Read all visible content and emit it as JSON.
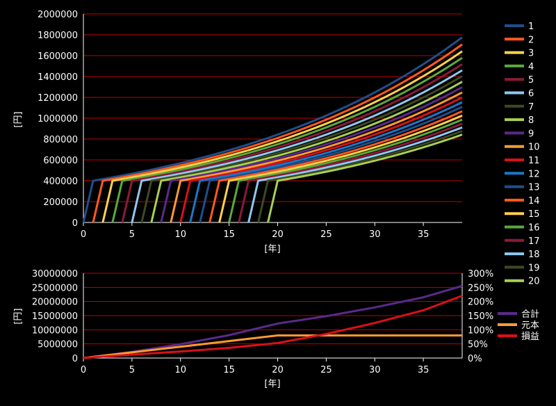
{
  "chart_data": [
    {
      "type": "line",
      "title": "",
      "xlabel": "[年]",
      "ylabel": "[円]",
      "xlim": [
        0,
        39
      ],
      "xticks": [
        0,
        5,
        10,
        15,
        20,
        25,
        30,
        35
      ],
      "ylim": [
        0,
        2000000
      ],
      "yticks": [
        0,
        200000,
        400000,
        600000,
        800000,
        1000000,
        1200000,
        1400000,
        1600000,
        1800000,
        2000000
      ],
      "grid": true,
      "legend_position": "right",
      "series_model": {
        "start_year": "series index minus 1",
        "value_after_one_year": 400000,
        "annual_growth": 0.04,
        "last_x": 39
      },
      "series": [
        {
          "name": "1",
          "color": "#1f4f8c"
        },
        {
          "name": "2",
          "color": "#ff5a1f"
        },
        {
          "name": "3",
          "color": "#ffd24a"
        },
        {
          "name": "4",
          "color": "#5aaa3c"
        },
        {
          "name": "5",
          "color": "#8c1a3a"
        },
        {
          "name": "6",
          "color": "#8ec8f0"
        },
        {
          "name": "7",
          "color": "#3c4a22"
        },
        {
          "name": "8",
          "color": "#a8d050"
        },
        {
          "name": "9",
          "color": "#5a2a8c"
        },
        {
          "name": "10",
          "color": "#ff9a30"
        },
        {
          "name": "11",
          "color": "#d8101a"
        },
        {
          "name": "12",
          "color": "#1a78c8"
        },
        {
          "name": "13",
          "color": "#1f4f8c"
        },
        {
          "name": "14",
          "color": "#ff5a1f"
        },
        {
          "name": "15",
          "color": "#ffd24a"
        },
        {
          "name": "16",
          "color": "#5aaa3c"
        },
        {
          "name": "17",
          "color": "#8c1a3a"
        },
        {
          "name": "18",
          "color": "#8ec8f0"
        },
        {
          "name": "19",
          "color": "#3c4a22"
        },
        {
          "name": "20",
          "color": "#a8d050"
        }
      ]
    },
    {
      "type": "line",
      "title": "",
      "xlabel": "[年]",
      "ylabel": "[円]",
      "xlim": [
        0,
        39
      ],
      "xticks": [
        0,
        5,
        10,
        15,
        20,
        25,
        30,
        35
      ],
      "ylim": [
        0,
        30000000
      ],
      "yticks": [
        0,
        5000000,
        10000000,
        15000000,
        20000000,
        25000000,
        30000000
      ],
      "y2lim": [
        0,
        3
      ],
      "y2ticks": [
        "0%",
        "50%",
        "100%",
        "150%",
        "200%",
        "250%",
        "300%"
      ],
      "grid": true,
      "legend_position": "right",
      "series": [
        {
          "name": "合計",
          "color": "#5a2a8c",
          "x": [
            0,
            5,
            10,
            15,
            20,
            25,
            30,
            35,
            39
          ],
          "values": [
            0,
            2200000,
            4900000,
            8100000,
            12200000,
            14800000,
            17900000,
            21500000,
            25500000
          ]
        },
        {
          "name": "元本",
          "color": "#ff9a30",
          "x": [
            0,
            5,
            10,
            15,
            20,
            25,
            30,
            35,
            39
          ],
          "values": [
            0,
            2000000,
            4000000,
            6000000,
            8000000,
            8000000,
            8000000,
            8000000,
            8000000
          ]
        },
        {
          "name": "損益",
          "color": "#d8101a",
          "axis": "right",
          "x": [
            0,
            5,
            10,
            15,
            20,
            25,
            30,
            35,
            39
          ],
          "values": [
            0,
            0.12,
            0.23,
            0.36,
            0.53,
            0.85,
            1.24,
            1.69,
            2.2
          ]
        }
      ]
    }
  ]
}
